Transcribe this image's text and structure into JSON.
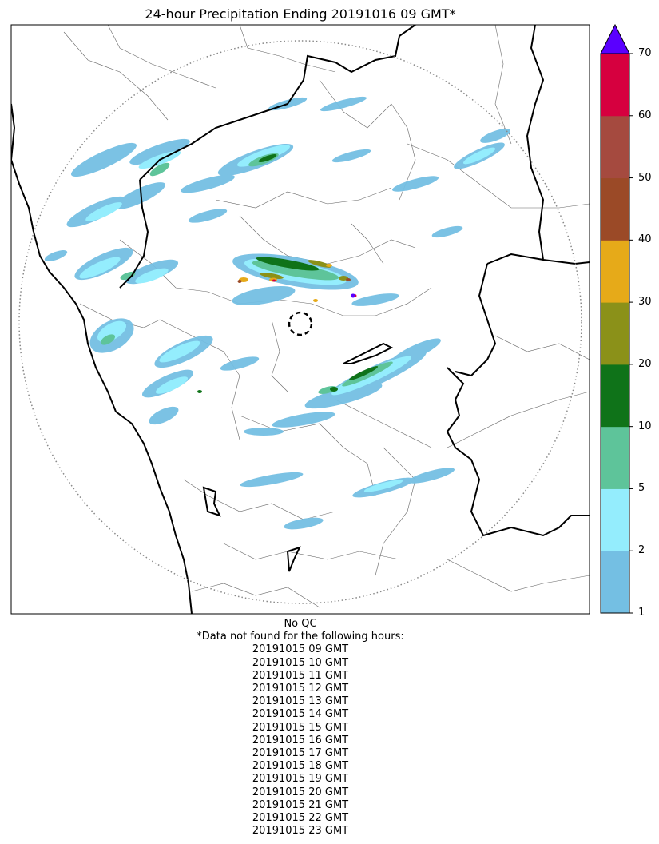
{
  "title": "24-hour Precipitation Ending 20191016 09 GMT*",
  "colorbar": {
    "ticks": [
      "1",
      "2",
      "5",
      "10",
      "20",
      "30",
      "40",
      "50",
      "60",
      "70"
    ],
    "colors": [
      "#74bfe3",
      "#94edfd",
      "#5ec49a",
      "#0f7319",
      "#8b9119",
      "#e6aa19",
      "#9b4a27",
      "#a54a3f",
      "#d6003f"
    ],
    "over_color": "#5a00ff"
  },
  "footer": {
    "qc": "No QC",
    "note": "*Data not found for the following hours:",
    "hours": [
      "20191015 09 GMT",
      "20191015 10 GMT",
      "20191015 11 GMT",
      "20191015 12 GMT",
      "20191015 13 GMT",
      "20191015 14 GMT",
      "20191015 15 GMT",
      "20191015 16 GMT",
      "20191015 17 GMT",
      "20191015 18 GMT",
      "20191015 19 GMT",
      "20191015 20 GMT",
      "20191015 21 GMT",
      "20191015 22 GMT",
      "20191015 23 GMT"
    ]
  }
}
